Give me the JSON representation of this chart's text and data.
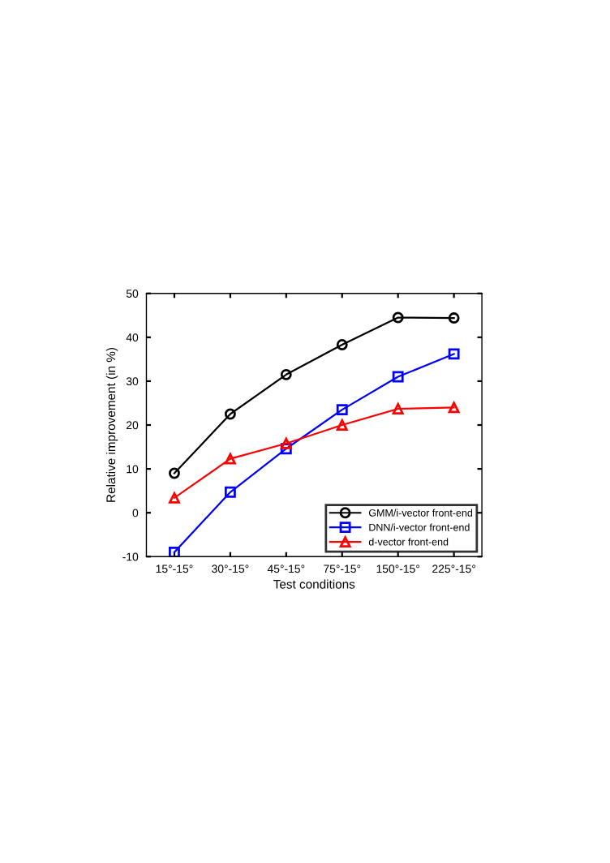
{
  "chart_data": {
    "type": "line",
    "xlabel": "Test conditions",
    "ylabel": "Relative improvement (in %)",
    "categories": [
      "15°-15°",
      "30°-15°",
      "45°-15°",
      "75°-15°",
      "150°-15°",
      "225°-15°"
    ],
    "series": [
      {
        "name": "GMM/i-vector front-end",
        "color": "#000000",
        "marker": "circle",
        "values": [
          9,
          22.5,
          31.5,
          38.3,
          44.5,
          44.4
        ]
      },
      {
        "name": "DNN/i-vector front-end",
        "color": "#0000ff",
        "marker": "square",
        "values": [
          -9,
          4.7,
          14.6,
          23.5,
          31,
          36.2
        ]
      },
      {
        "name": "d-vector front-end",
        "color": "#ff0000",
        "marker": "triangle",
        "values": [
          3.4,
          12.3,
          15.8,
          20,
          23.7,
          24
        ]
      }
    ],
    "ylim": [
      -10,
      50
    ],
    "yticks": [
      -10,
      0,
      10,
      20,
      30,
      40,
      50
    ],
    "legend": "bottom right",
    "grid": false,
    "line_style": "solid"
  }
}
